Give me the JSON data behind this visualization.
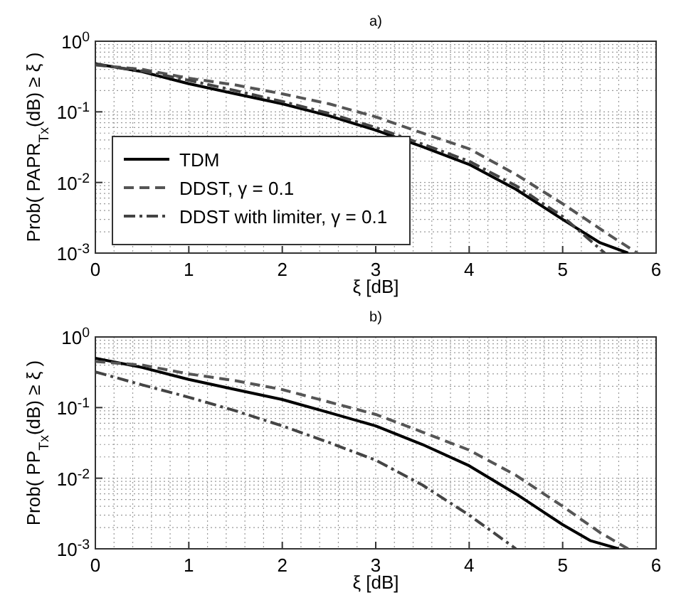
{
  "chart_data": [
    {
      "type": "line",
      "title": "a)",
      "xlabel": "ξ [dB]",
      "ylabel": "Prob( PAPR$_{Tx}$(dB) ≥ ξ )",
      "log": "y",
      "grid": true,
      "legend": "bottom left",
      "xlim": [
        0,
        6
      ],
      "xticks": [
        0,
        1,
        2,
        3,
        4,
        5,
        6
      ],
      "ylim": [
        0.001,
        1
      ],
      "yticks": [
        {
          "value": 0.001,
          "label": "10$^{-3}$"
        },
        {
          "value": 0.01,
          "label": "10$^{-2}$"
        },
        {
          "value": 0.1,
          "label": "10$^{-1}$"
        },
        {
          "value": 1,
          "label": "10$^{0}$"
        }
      ],
      "series": [
        {
          "name": "TDM",
          "color": "#000000",
          "line_style": "solid",
          "x": [
            0,
            0.5,
            1,
            1.5,
            2,
            2.5,
            3,
            3.5,
            4,
            4.5,
            5,
            5.4,
            5.7
          ],
          "values": [
            0.48,
            0.37,
            0.25,
            0.18,
            0.13,
            0.088,
            0.055,
            0.032,
            0.018,
            0.008,
            0.003,
            0.0014,
            0.001
          ]
        },
        {
          "name": "DDST, γ = 0.1",
          "color": "#555555",
          "line_style": "dashed",
          "x": [
            0,
            0.5,
            1,
            1.5,
            2,
            2.5,
            3,
            3.5,
            4,
            4.5,
            5,
            5.5,
            5.8
          ],
          "values": [
            0.46,
            0.4,
            0.3,
            0.24,
            0.18,
            0.13,
            0.085,
            0.05,
            0.03,
            0.013,
            0.005,
            0.0018,
            0.001
          ]
        },
        {
          "name": "DDST with limiter, γ = 0.1",
          "color": "#444444",
          "line_style": "dashdot",
          "x": [
            0,
            0.5,
            1,
            1.5,
            2,
            2.5,
            3,
            3.5,
            4,
            4.5,
            5,
            5.45
          ],
          "values": [
            0.47,
            0.38,
            0.28,
            0.2,
            0.14,
            0.095,
            0.06,
            0.035,
            0.02,
            0.009,
            0.0033,
            0.001
          ]
        }
      ]
    },
    {
      "type": "line",
      "title": "b)",
      "xlabel": "ξ [dB]",
      "ylabel": "Prob( PP$_{Tx}$(dB) ≥ ξ )",
      "log": "y",
      "grid": true,
      "legend": false,
      "xlim": [
        0,
        6
      ],
      "xticks": [
        0,
        1,
        2,
        3,
        4,
        5,
        6
      ],
      "ylim": [
        0.001,
        1
      ],
      "yticks": [
        {
          "value": 0.001,
          "label": "10$^{-3}$"
        },
        {
          "value": 0.01,
          "label": "10$^{-2}$"
        },
        {
          "value": 0.1,
          "label": "10$^{-1}$"
        },
        {
          "value": 1,
          "label": "10$^{0}$"
        }
      ],
      "series": [
        {
          "color": "#000000",
          "line_style": "solid",
          "x": [
            0,
            0.5,
            1,
            1.5,
            2,
            2.5,
            3,
            3.5,
            4,
            4.5,
            5,
            5.3,
            5.6
          ],
          "values": [
            0.5,
            0.37,
            0.25,
            0.18,
            0.13,
            0.085,
            0.055,
            0.03,
            0.015,
            0.006,
            0.0022,
            0.0013,
            0.001
          ]
        },
        {
          "color": "#555555",
          "line_style": "dashed",
          "x": [
            0,
            0.5,
            1,
            1.5,
            2,
            2.5,
            3,
            3.5,
            4,
            4.5,
            5,
            5.4,
            5.7
          ],
          "values": [
            0.45,
            0.4,
            0.3,
            0.24,
            0.18,
            0.12,
            0.08,
            0.045,
            0.025,
            0.011,
            0.004,
            0.0017,
            0.001
          ]
        },
        {
          "color": "#444444",
          "line_style": "dashdot",
          "x": [
            0,
            0.5,
            1,
            1.5,
            2,
            2.5,
            3,
            3.5,
            4,
            4.5
          ],
          "values": [
            0.32,
            0.21,
            0.14,
            0.09,
            0.055,
            0.032,
            0.018,
            0.008,
            0.003,
            0.001
          ]
        }
      ]
    }
  ]
}
